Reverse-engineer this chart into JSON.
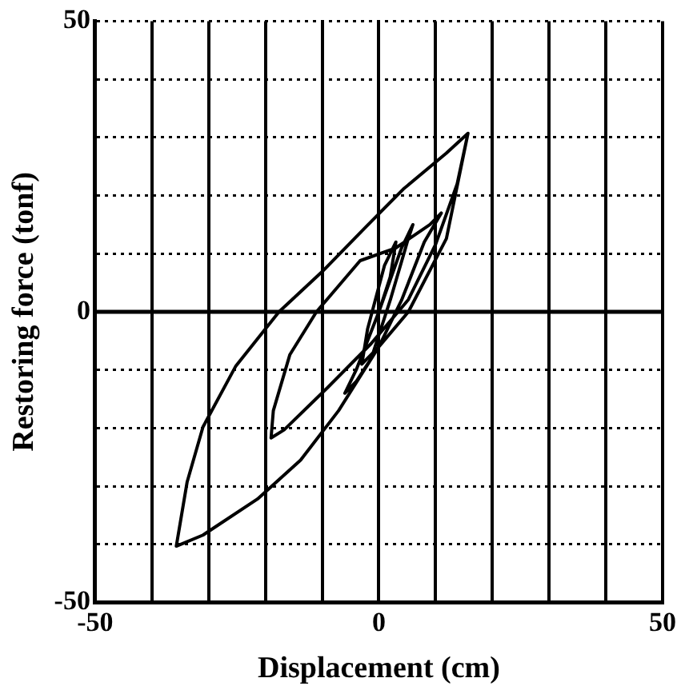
{
  "chart_data": {
    "type": "line",
    "xlabel": "Displacement (cm)",
    "ylabel": "Restoring force (tonf)",
    "xlim": [
      -50,
      50
    ],
    "ylim": [
      -50,
      50
    ],
    "xticks": [
      -50,
      {
        "value": -40,
        "label": null
      },
      {
        "value": -30,
        "label": null
      },
      {
        "value": -20,
        "label": null
      },
      {
        "value": -10,
        "label": null
      },
      0,
      {
        "value": 10,
        "label": null
      },
      {
        "value": 20,
        "label": null
      },
      {
        "value": 30,
        "label": null
      },
      {
        "value": 40,
        "label": null
      },
      50
    ],
    "yticks": [
      -50,
      {
        "value": -40,
        "label": null
      },
      {
        "value": -30,
        "label": null
      },
      {
        "value": -20,
        "label": null
      },
      {
        "value": -10,
        "label": null
      },
      0,
      {
        "value": 10,
        "label": null
      },
      {
        "value": 20,
        "label": null
      },
      {
        "value": 30,
        "label": null
      },
      {
        "value": 40,
        "label": null
      },
      50
    ],
    "grid": true,
    "marker": "none",
    "line_style": "solid",
    "ref_lines": [
      {
        "axis": "y",
        "value": 0,
        "color": "#000000",
        "line_style": "solid"
      }
    ],
    "series": [
      {
        "color": "#000000",
        "x": [
          0,
          2,
          3,
          1,
          -2,
          -3,
          -1,
          2,
          5,
          6,
          4,
          0,
          -4,
          -6,
          -4,
          0,
          4,
          8,
          11,
          9,
          3,
          -3.3,
          -11,
          -15.7,
          -18.6,
          -19,
          -16.7,
          -9,
          -1.4,
          5.2,
          10,
          13.8,
          15.7,
          11.9,
          4.3,
          -2.4,
          -10,
          -17.6,
          -25.2,
          -31,
          -33.8,
          -35.7,
          -31,
          -21.4,
          -13.8,
          -7.1,
          0,
          5.2,
          11.9,
          15.7
        ],
        "values": [
          0,
          6,
          12,
          8,
          -3,
          -9,
          -7,
          2,
          12,
          15,
          11,
          0,
          -10,
          -14,
          -12,
          -6,
          2,
          12,
          17,
          15,
          11,
          8.8,
          0,
          -7.4,
          -17,
          -21.7,
          -20.3,
          -13,
          -5.5,
          2.1,
          11.6,
          22,
          30.7,
          27.3,
          21.1,
          14.5,
          6.9,
          0,
          -9.3,
          -19.8,
          -29.3,
          -40.3,
          -38.4,
          -32.2,
          -25.5,
          -17,
          -6,
          0,
          12.6,
          30.7
        ]
      }
    ]
  }
}
